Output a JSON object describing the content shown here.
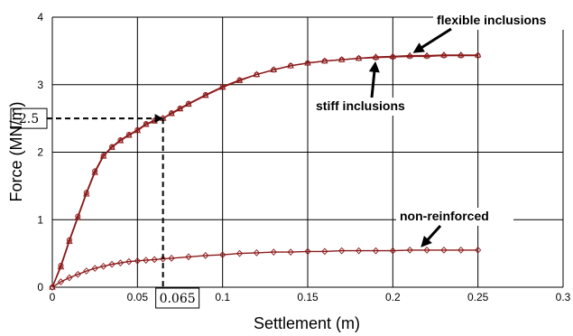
{
  "chart_data": {
    "type": "line",
    "xlabel": "Settlement (m)",
    "ylabel": "Force (MN/m)",
    "xlim": [
      0,
      0.3
    ],
    "ylim": [
      0,
      4
    ],
    "x_ticks": [
      "0",
      "0.05",
      "0.1",
      "0.15",
      "0.2",
      "0.25",
      "0.3"
    ],
    "y_ticks": [
      "0",
      "1",
      "2",
      "3",
      "4"
    ],
    "grid": true,
    "line_color": "#8b1a1a",
    "series": [
      {
        "marker": "circle",
        "x": [
          0,
          0.005,
          0.01,
          0.015,
          0.02,
          0.025,
          0.03,
          0.035,
          0.04,
          0.045,
          0.05,
          0.055,
          0.06,
          0.065,
          0.07,
          0.075,
          0.08,
          0.09,
          0.1,
          0.11,
          0.12,
          0.13,
          0.14,
          0.15,
          0.16,
          0.17,
          0.18,
          0.19,
          0.2,
          0.21,
          0.22,
          0.23,
          0.24,
          0.25
        ],
        "y": [
          0,
          0.32,
          0.7,
          1.05,
          1.4,
          1.72,
          1.95,
          2.08,
          2.18,
          2.26,
          2.33,
          2.42,
          2.47,
          2.5,
          2.58,
          2.65,
          2.72,
          2.85,
          2.97,
          3.07,
          3.15,
          3.22,
          3.28,
          3.32,
          3.35,
          3.37,
          3.39,
          3.4,
          3.41,
          3.42,
          3.42,
          3.43,
          3.43,
          3.43
        ]
      },
      {
        "marker": "triangle",
        "x": [
          0,
          0.005,
          0.01,
          0.015,
          0.02,
          0.025,
          0.03,
          0.035,
          0.04,
          0.045,
          0.05,
          0.055,
          0.06,
          0.065,
          0.07,
          0.075,
          0.08,
          0.09,
          0.1,
          0.11,
          0.12,
          0.13,
          0.14,
          0.15,
          0.16,
          0.17,
          0.18,
          0.19,
          0.2,
          0.21,
          0.22,
          0.23,
          0.24,
          0.25
        ],
        "y": [
          0,
          0.3,
          0.68,
          1.03,
          1.38,
          1.7,
          1.94,
          2.07,
          2.17,
          2.25,
          2.32,
          2.41,
          2.46,
          2.5,
          2.57,
          2.64,
          2.71,
          2.84,
          2.96,
          3.06,
          3.15,
          3.22,
          3.28,
          3.32,
          3.35,
          3.37,
          3.39,
          3.41,
          3.42,
          3.43,
          3.43,
          3.44,
          3.44,
          3.44
        ]
      },
      {
        "marker": "diamond",
        "x": [
          0,
          0.005,
          0.01,
          0.015,
          0.02,
          0.025,
          0.03,
          0.035,
          0.04,
          0.045,
          0.05,
          0.055,
          0.06,
          0.065,
          0.07,
          0.08,
          0.09,
          0.1,
          0.11,
          0.12,
          0.13,
          0.14,
          0.15,
          0.16,
          0.17,
          0.18,
          0.19,
          0.2,
          0.21,
          0.22,
          0.23,
          0.24,
          0.25
        ],
        "y": [
          0,
          0.08,
          0.14,
          0.19,
          0.24,
          0.28,
          0.31,
          0.34,
          0.36,
          0.38,
          0.39,
          0.4,
          0.41,
          0.42,
          0.43,
          0.45,
          0.47,
          0.48,
          0.5,
          0.51,
          0.52,
          0.52,
          0.53,
          0.53,
          0.54,
          0.54,
          0.54,
          0.54,
          0.55,
          0.55,
          0.55,
          0.55,
          0.55
        ]
      }
    ],
    "annotations": [
      {
        "text": "flexible inclusions",
        "points_to": [
          0.21,
          3.44
        ]
      },
      {
        "text": "stiff inclusions",
        "points_to": [
          0.19,
          3.4
        ]
      },
      {
        "text": "non-reinforced",
        "points_to": [
          0.215,
          0.55
        ]
      }
    ],
    "reference": {
      "x_label": "0.065",
      "y_label": "2.5",
      "x": 0.065,
      "y": 2.5
    }
  }
}
